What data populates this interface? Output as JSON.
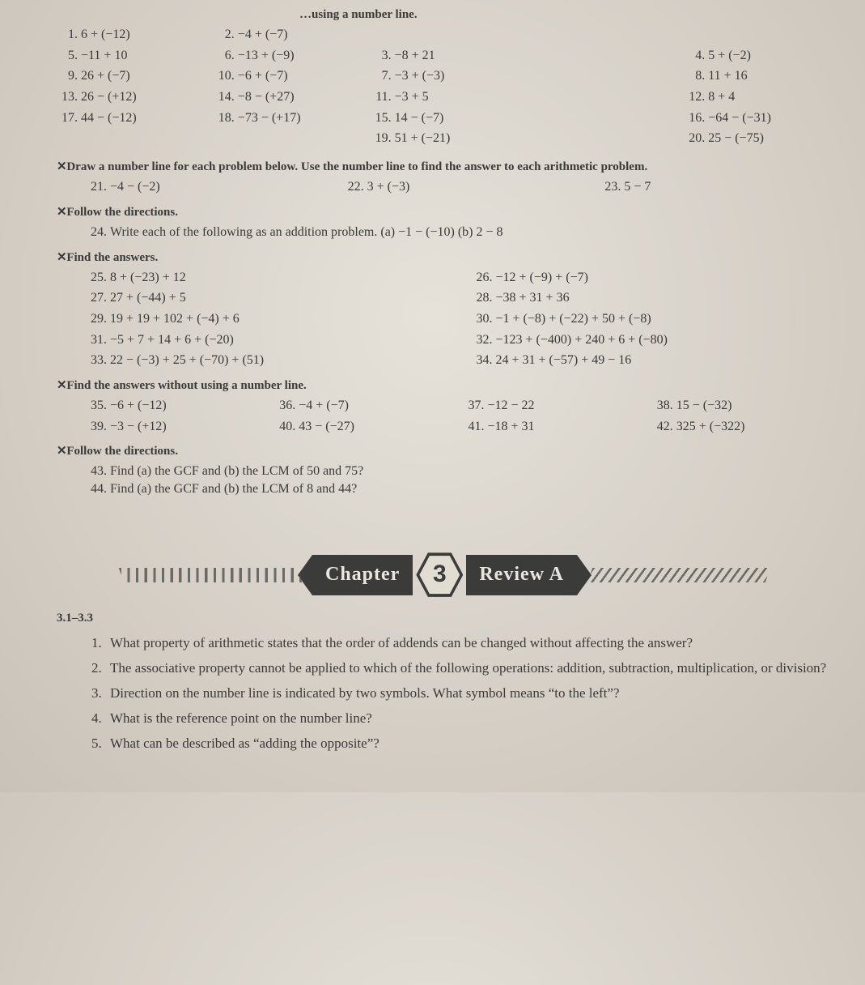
{
  "top_hint": "…using a number line.",
  "grid1": [
    {
      "n": "1.",
      "e": "6 + (−12)"
    },
    {
      "n": "2.",
      "e": "−4 + (−7)"
    },
    {
      "n": "3.",
      "e": "−8 + 21"
    },
    {
      "n": "4.",
      "e": "5 + (−2)"
    },
    {
      "n": "5.",
      "e": "−11 + 10"
    },
    {
      "n": "6.",
      "e": "−13 + (−9)"
    },
    {
      "n": "7.",
      "e": "−3 + (−3)"
    },
    {
      "n": "8.",
      "e": "11 + 16"
    },
    {
      "n": "9.",
      "e": "26 + (−7)"
    },
    {
      "n": "10.",
      "e": "−6 + (−7)"
    },
    {
      "n": "11.",
      "e": "−3 + 5"
    },
    {
      "n": "12.",
      "e": "8 + 4"
    },
    {
      "n": "13.",
      "e": "26 − (+12)"
    },
    {
      "n": "14.",
      "e": "−8 − (+27)"
    },
    {
      "n": "15.",
      "e": "14 − (−7)"
    },
    {
      "n": "16.",
      "e": "−64 − (−31)"
    },
    {
      "n": "17.",
      "e": "44 − (−12)"
    },
    {
      "n": "18.",
      "e": "−73 − (+17)"
    },
    {
      "n": "19.",
      "e": "51 + (−21)"
    },
    {
      "n": "20.",
      "e": "25 − (−75)"
    }
  ],
  "secA_head": "Draw a number line for each problem below. Use the number line to find the answer to each arithmetic problem.",
  "secA_items": [
    {
      "n": "21.",
      "e": "−4 − (−2)"
    },
    {
      "n": "22.",
      "e": "3 + (−3)"
    },
    {
      "n": "23.",
      "e": "5 − 7"
    }
  ],
  "secB_head": "Follow the directions.",
  "secB_item": {
    "n": "24.",
    "e": "Write each of the following as an addition problem. (a) −1 − (−10)  (b) 2 − 8"
  },
  "secC_head": "Find the answers.",
  "secC_items": [
    {
      "n": "25.",
      "e": "8 + (−23) + 12"
    },
    {
      "n": "26.",
      "e": "−12 + (−9) + (−7)"
    },
    {
      "n": "27.",
      "e": "27 + (−44) + 5"
    },
    {
      "n": "28.",
      "e": "−38 + 31 + 36"
    },
    {
      "n": "29.",
      "e": "19 + 19 + 102 + (−4) + 6"
    },
    {
      "n": "30.",
      "e": "−1 + (−8) + (−22) + 50 + (−8)"
    },
    {
      "n": "31.",
      "e": "−5 + 7 + 14 + 6 + (−20)"
    },
    {
      "n": "32.",
      "e": "−123 + (−400) + 240 + 6 + (−80)"
    },
    {
      "n": "33.",
      "e": "22 − (−3) + 25 + (−70) + (51)"
    },
    {
      "n": "34.",
      "e": "24 + 31 + (−57) + 49 − 16"
    }
  ],
  "secD_head": "Find the answers without using a number line.",
  "secD_items": [
    {
      "n": "35.",
      "e": "−6 + (−12)"
    },
    {
      "n": "36.",
      "e": "−4 + (−7)"
    },
    {
      "n": "37.",
      "e": "−12 − 22"
    },
    {
      "n": "38.",
      "e": "15 − (−32)"
    },
    {
      "n": "39.",
      "e": "−3 − (+12)"
    },
    {
      "n": "40.",
      "e": "43 − (−27)"
    },
    {
      "n": "41.",
      "e": "−18 + 31"
    },
    {
      "n": "42.",
      "e": "325 + (−322)"
    }
  ],
  "secE_head": "Follow the directions.",
  "secE_items": [
    {
      "n": "43.",
      "e": "Find (a) the GCF and (b) the LCM of 50 and 75?"
    },
    {
      "n": "44.",
      "e": "Find (a) the GCF and (b) the LCM of 8 and 44?"
    }
  ],
  "banner": {
    "left": "Chapter",
    "num": "3",
    "right": "Review A"
  },
  "range": "3.1–3.3",
  "review": [
    "What property of arithmetic states that the order of addends can be changed without affecting the answer?",
    "The associative property cannot be applied to which of the following operations: addition, subtraction, multiplication, or division?",
    "Direction on the number line is indicated by two symbols. What symbol means “to the left”?",
    "What is the reference point on the number line?",
    "What can be described as “adding the opposite”?"
  ]
}
